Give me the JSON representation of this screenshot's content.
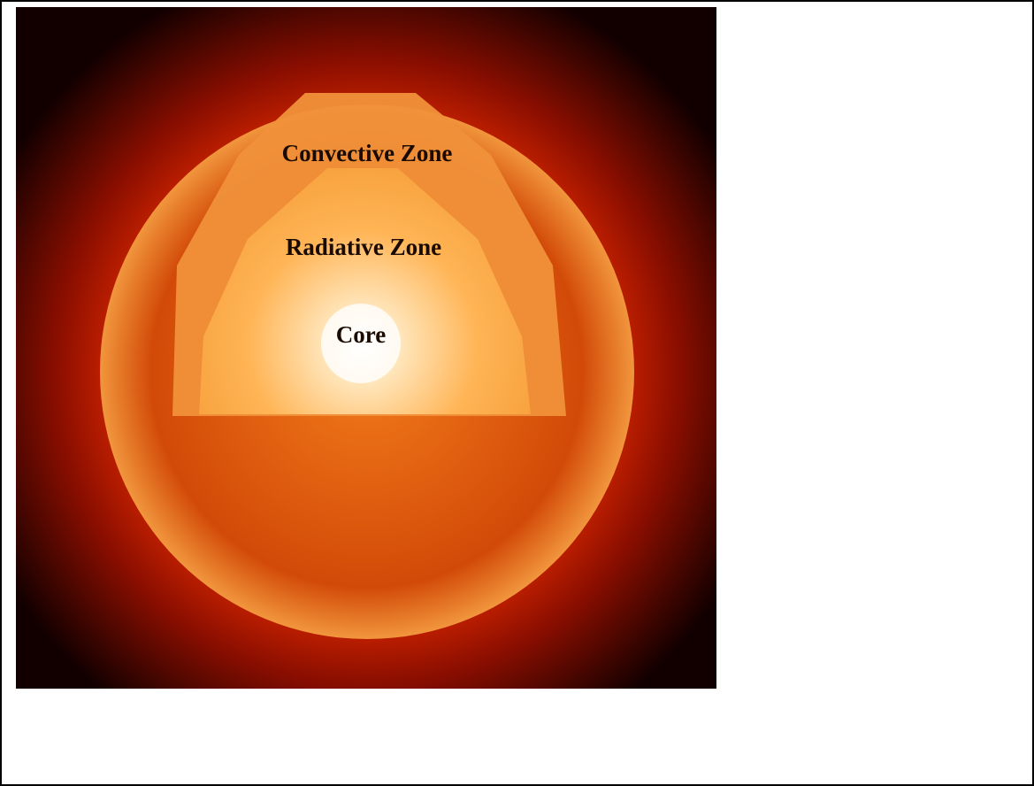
{
  "labels": {
    "convective_zone": "Convective Zone",
    "radiative_zone": "Radiative Zone",
    "core": "Core"
  }
}
